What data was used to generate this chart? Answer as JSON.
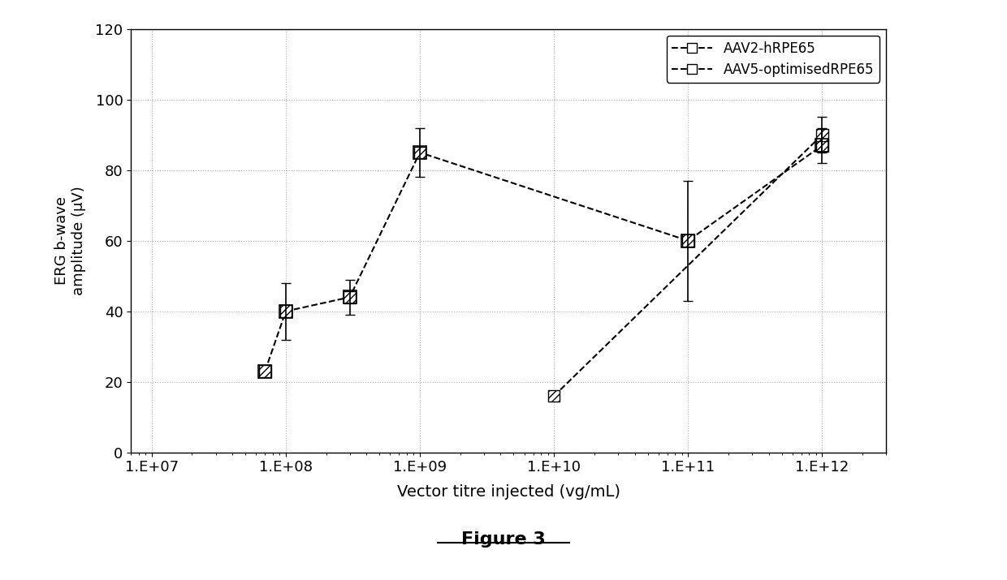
{
  "series1_name": "AAV2-hRPE65",
  "series2_name": "AAV5-optimisedRPE65",
  "series1_x": [
    70000000.0,
    100000000.0,
    300000000.0,
    1000000000.0,
    100000000000.0,
    1000000000000.0
  ],
  "series1_y": [
    23,
    40,
    44,
    85,
    60,
    87
  ],
  "series1_yerr": [
    0,
    8,
    5,
    7,
    17,
    5
  ],
  "series2_x": [
    10000000000.0,
    1000000000000.0
  ],
  "series2_y": [
    16,
    90
  ],
  "series2_yerr": [
    0,
    5
  ],
  "xlim_min": 10000000.0,
  "xlim_max": 3000000000000.0,
  "ylim_min": 0,
  "ylim_max": 120,
  "yticks": [
    0,
    20,
    40,
    60,
    80,
    100,
    120
  ],
  "xtick_values": [
    10000000.0,
    100000000.0,
    1000000000.0,
    10000000000.0,
    100000000000.0,
    1000000000000.0
  ],
  "xtick_labels": [
    "1.E+07",
    "1.E+08",
    "1.E+09",
    "1.E+10",
    "1.E+11",
    "1.E+12"
  ],
  "xlabel": "Vector titre injected (vg/mL)",
  "ylabel": "ERG b-wave\namplitude (μV)",
  "figure_label": "Figure 3",
  "line_color": "#000000",
  "background_color": "#ffffff",
  "grid_color": "#aaaaaa"
}
